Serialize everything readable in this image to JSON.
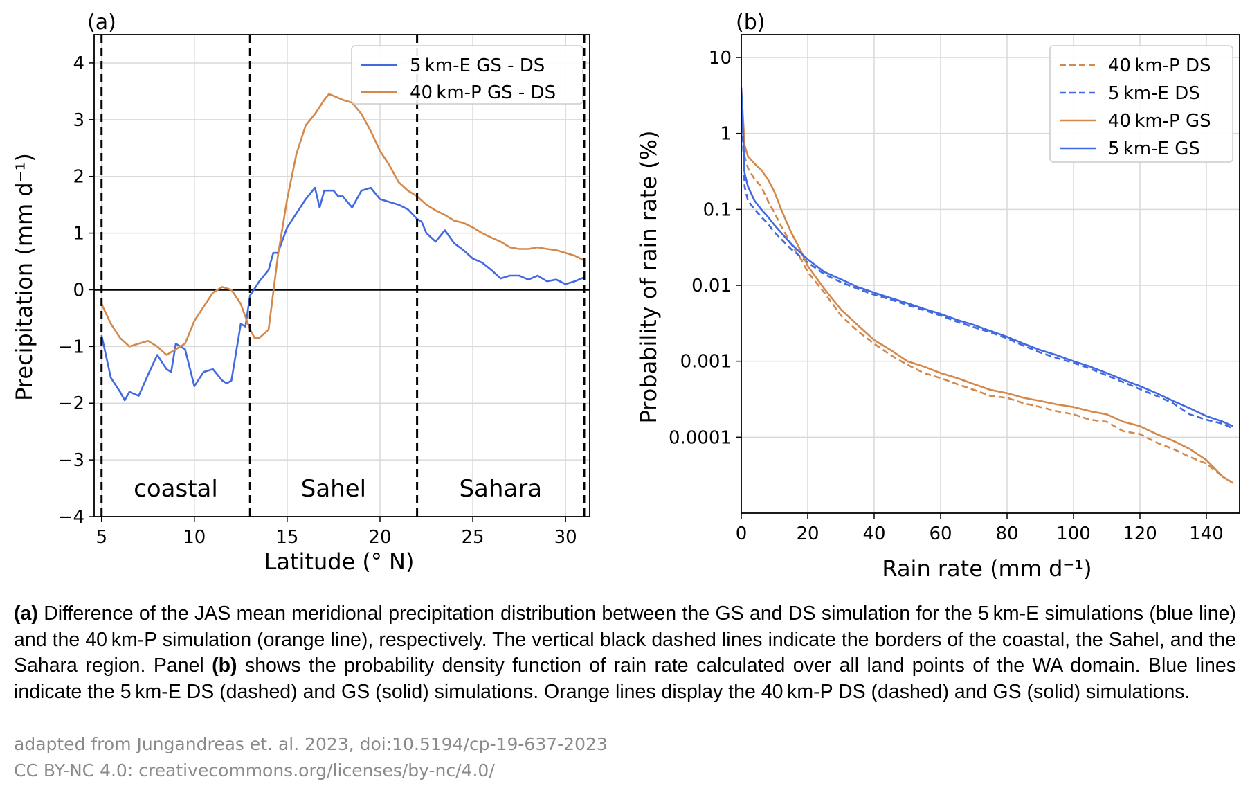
{
  "chart_data": [
    {
      "type": "line",
      "panel_label": "(a)",
      "xlabel": "Latitude (° N)",
      "ylabel": "Precipitation (mm d⁻¹)",
      "xlim": [
        4.6,
        31.3
      ],
      "ylim": [
        -4,
        4.5
      ],
      "xticks": [
        5,
        10,
        15,
        20,
        25,
        30
      ],
      "yticks": [
        -4,
        -3,
        -2,
        -1,
        0,
        1,
        2,
        3,
        4
      ],
      "ytick_labels": [
        "−4",
        "−3",
        "−2",
        "−1",
        "0",
        "1",
        "2",
        "3",
        "4"
      ],
      "grid": true,
      "legend_position": "top-right",
      "zero_line": 0,
      "region_borders": [
        5,
        13,
        22,
        31
      ],
      "region_labels": [
        {
          "text": "coastal",
          "x": 9,
          "y": -3.5
        },
        {
          "text": "Sahel",
          "x": 17.5,
          "y": -3.5
        },
        {
          "text": "Sahara",
          "x": 26.5,
          "y": -3.5
        }
      ],
      "series": [
        {
          "name": "5 km-E GS - DS",
          "color": "#4169e1",
          "style": "solid",
          "x": [
            5,
            5.5,
            6,
            6.25,
            6.5,
            7,
            7.5,
            8,
            8.5,
            8.75,
            9,
            9.25,
            9.5,
            10,
            10.5,
            11,
            11.5,
            11.75,
            12,
            12.5,
            12.75,
            13,
            13.5,
            14,
            14.25,
            14.5,
            15,
            15.5,
            16,
            16.5,
            16.75,
            17,
            17.5,
            17.75,
            18,
            18.5,
            19,
            19.5,
            20,
            20.5,
            21,
            21.5,
            22,
            22.25,
            22.5,
            23,
            23.5,
            24,
            24.5,
            25,
            25.5,
            26,
            26.5,
            27,
            27.5,
            28,
            28.5,
            29,
            29.5,
            30,
            30.5,
            31
          ],
          "y": [
            -0.8,
            -1.55,
            -1.8,
            -1.95,
            -1.8,
            -1.87,
            -1.5,
            -1.15,
            -1.4,
            -1.45,
            -0.95,
            -1.0,
            -1.05,
            -1.7,
            -1.45,
            -1.4,
            -1.6,
            -1.65,
            -1.6,
            -0.6,
            -0.65,
            -0.1,
            0.15,
            0.35,
            0.65,
            0.65,
            1.1,
            1.35,
            1.6,
            1.8,
            1.45,
            1.75,
            1.75,
            1.65,
            1.65,
            1.45,
            1.75,
            1.8,
            1.6,
            1.55,
            1.5,
            1.42,
            1.25,
            1.2,
            1.0,
            0.85,
            1.05,
            0.82,
            0.7,
            0.55,
            0.48,
            0.35,
            0.2,
            0.25,
            0.25,
            0.18,
            0.25,
            0.15,
            0.18,
            0.1,
            0.15,
            0.22
          ]
        },
        {
          "name": "40 km-P GS - DS",
          "color": "#d4884a",
          "style": "solid",
          "x": [
            5,
            5.5,
            6,
            6.5,
            7,
            7.5,
            8,
            8.5,
            9,
            9.5,
            10,
            10.5,
            11,
            11.5,
            12,
            12.5,
            13,
            13.25,
            13.5,
            14,
            14.5,
            15,
            15.5,
            16,
            16.5,
            17,
            17.25,
            17.5,
            18,
            18.5,
            19,
            19.5,
            20,
            20.5,
            21,
            21.5,
            22,
            22.5,
            23,
            23.5,
            24,
            24.5,
            25,
            25.5,
            26,
            26.5,
            27,
            27.5,
            28,
            28.5,
            29,
            29.5,
            30,
            30.5,
            31
          ],
          "y": [
            -0.25,
            -0.6,
            -0.85,
            -1.0,
            -0.95,
            -0.9,
            -1.0,
            -1.15,
            -1.05,
            -0.95,
            -0.55,
            -0.3,
            -0.05,
            0.05,
            0.0,
            -0.25,
            -0.7,
            -0.85,
            -0.85,
            -0.7,
            0.6,
            1.6,
            2.4,
            2.9,
            3.1,
            3.35,
            3.45,
            3.42,
            3.35,
            3.3,
            3.1,
            2.8,
            2.45,
            2.2,
            1.9,
            1.75,
            1.65,
            1.5,
            1.4,
            1.32,
            1.22,
            1.18,
            1.1,
            1.0,
            0.92,
            0.85,
            0.75,
            0.72,
            0.72,
            0.75,
            0.72,
            0.7,
            0.65,
            0.6,
            0.52
          ]
        }
      ]
    },
    {
      "type": "line",
      "panel_label": "(b)",
      "xlabel": "Rain rate (mm d⁻¹)",
      "ylabel": "Probability of rain rate (%)",
      "yscale": "log",
      "xlim": [
        0,
        150
      ],
      "ylim": [
        1e-05,
        20
      ],
      "xticks": [
        0,
        20,
        40,
        60,
        80,
        100,
        120,
        140
      ],
      "yticks": [
        0.0001,
        0.001,
        0.01,
        0.1,
        1,
        10
      ],
      "ytick_labels": [
        "0.0001",
        "0.001",
        "0.01",
        "0.1",
        "1",
        "10"
      ],
      "grid": true,
      "legend_position": "top-right",
      "series": [
        {
          "name": "40 km-P DS",
          "color": "#d4884a",
          "style": "dashed",
          "x": [
            0,
            1,
            2,
            4,
            6,
            8,
            10,
            12,
            15,
            18,
            20,
            25,
            30,
            35,
            40,
            45,
            50,
            55,
            60,
            65,
            70,
            75,
            80,
            85,
            90,
            95,
            100,
            105,
            110,
            115,
            120,
            125,
            130,
            135,
            140,
            145,
            148
          ],
          "y": [
            3,
            0.5,
            0.35,
            0.25,
            0.2,
            0.13,
            0.09,
            0.06,
            0.035,
            0.022,
            0.015,
            0.008,
            0.004,
            0.0025,
            0.0017,
            0.0012,
            0.0009,
            0.0007,
            0.0006,
            0.0005,
            0.00042,
            0.00035,
            0.00033,
            0.00028,
            0.00025,
            0.00022,
            0.0002,
            0.00017,
            0.00016,
            0.00012,
            0.00011,
            8.5e-05,
            7e-05,
            5.5e-05,
            4.5e-05,
            3e-05,
            2.5e-05
          ]
        },
        {
          "name": "5 km-E DS",
          "color": "#4169e1",
          "style": "dashed",
          "x": [
            0,
            1,
            2,
            4,
            6,
            8,
            10,
            15,
            20,
            25,
            30,
            35,
            40,
            45,
            50,
            55,
            60,
            65,
            70,
            75,
            80,
            85,
            90,
            95,
            100,
            105,
            110,
            115,
            120,
            125,
            130,
            135,
            140,
            145,
            148
          ],
          "y": [
            3,
            0.2,
            0.13,
            0.1,
            0.08,
            0.065,
            0.05,
            0.03,
            0.02,
            0.014,
            0.011,
            0.009,
            0.0075,
            0.0065,
            0.0055,
            0.0047,
            0.004,
            0.0033,
            0.0028,
            0.0024,
            0.002,
            0.0016,
            0.0013,
            0.0011,
            0.00095,
            0.0008,
            0.00065,
            0.00053,
            0.00043,
            0.00035,
            0.00028,
            0.0002,
            0.00017,
            0.00015,
            0.00013
          ]
        },
        {
          "name": "40 km-P GS",
          "color": "#d4884a",
          "style": "solid",
          "x": [
            0,
            1,
            2,
            4,
            6,
            8,
            10,
            12,
            15,
            18,
            20,
            25,
            30,
            35,
            40,
            45,
            50,
            55,
            60,
            65,
            70,
            75,
            80,
            85,
            90,
            95,
            100,
            105,
            110,
            115,
            120,
            125,
            130,
            135,
            140,
            145,
            148
          ],
          "y": [
            4,
            0.7,
            0.5,
            0.4,
            0.33,
            0.25,
            0.17,
            0.1,
            0.05,
            0.028,
            0.018,
            0.009,
            0.0048,
            0.003,
            0.0019,
            0.0014,
            0.001,
            0.00085,
            0.0007,
            0.0006,
            0.0005,
            0.00042,
            0.00038,
            0.00033,
            0.0003,
            0.00027,
            0.00025,
            0.00022,
            0.0002,
            0.00016,
            0.00014,
            0.00011,
            9e-05,
            7e-05,
            5e-05,
            3e-05,
            2.5e-05
          ]
        },
        {
          "name": "5 km-E GS",
          "color": "#4169e1",
          "style": "solid",
          "x": [
            0,
            1,
            2,
            4,
            6,
            8,
            10,
            15,
            20,
            25,
            30,
            35,
            40,
            45,
            50,
            55,
            60,
            65,
            70,
            75,
            80,
            85,
            90,
            95,
            100,
            105,
            110,
            115,
            120,
            125,
            130,
            135,
            140,
            145,
            148
          ],
          "y": [
            4,
            0.3,
            0.2,
            0.13,
            0.1,
            0.08,
            0.062,
            0.035,
            0.022,
            0.015,
            0.012,
            0.0095,
            0.008,
            0.0068,
            0.0058,
            0.0049,
            0.0042,
            0.0035,
            0.003,
            0.0025,
            0.0021,
            0.0017,
            0.0014,
            0.0012,
            0.001,
            0.00085,
            0.0007,
            0.00057,
            0.00047,
            0.00038,
            0.0003,
            0.00024,
            0.00019,
            0.00016,
            0.00014
          ]
        }
      ]
    }
  ],
  "caption": {
    "a_label": "(a)",
    "a_text": " Difference of the JAS mean meridional precipitation distribution between the GS and DS simulation for the 5 km-E simulations (blue line) and the 40 km-P simulation (orange line), respectively. The vertical black dashed lines indicate the borders of the coastal, the Sahel, and the Sahara region. Panel ",
    "b_label": "(b)",
    "b_text": " shows the probability density function of rain rate calculated over all land points of the WA domain. Blue lines indicate the 5 km-E DS (dashed) and GS (solid) simulations. Orange lines display the 40 km-P DS (dashed) and GS (solid) simulations."
  },
  "credit": {
    "line1": "adapted from Jungandreas et. al. 2023, doi:10.5194/cp-19-637-2023",
    "line2": "CC BY-NC 4.0: creativecommons.org/licenses/by-nc/4.0/"
  }
}
